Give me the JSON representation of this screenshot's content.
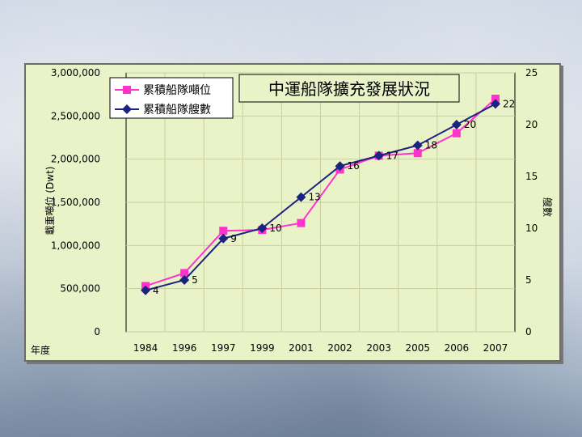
{
  "chart_data": {
    "type": "line",
    "title": "中運船隊擴充發展狀況",
    "xlabel": "年度",
    "ylabel_left": "載重噸位 (Dwt)",
    "ylabel_right": "艘數",
    "categories": [
      "1984",
      "1996",
      "1997",
      "1999",
      "2001",
      "2002",
      "2003",
      "2005",
      "2006",
      "2007"
    ],
    "ylim_left": [
      0,
      3000000
    ],
    "ylim_right": [
      0,
      25
    ],
    "yticks_left": [
      "0",
      "500,000",
      "1,000,000",
      "1,500,000",
      "2,000,000",
      "2,500,000",
      "3,000,000"
    ],
    "yticks_right": [
      "0",
      "5",
      "10",
      "15",
      "20",
      "25"
    ],
    "grid": true,
    "legend_position": "top-left",
    "series": [
      {
        "name": "累積船隊噸位",
        "axis": "left",
        "color": "#ff33cc",
        "marker": "square",
        "values": [
          530000,
          680000,
          1170000,
          1180000,
          1260000,
          1880000,
          2040000,
          2070000,
          2300000,
          2700000
        ]
      },
      {
        "name": "累積船隊艘數",
        "axis": "right",
        "color": "#1a237e",
        "marker": "diamond",
        "values": [
          4,
          5,
          9,
          10,
          13,
          16,
          17,
          18,
          20,
          22
        ],
        "data_labels": [
          "4",
          "5",
          "9",
          "10",
          "13",
          "16",
          "17",
          "18",
          "20",
          "22"
        ]
      }
    ]
  }
}
